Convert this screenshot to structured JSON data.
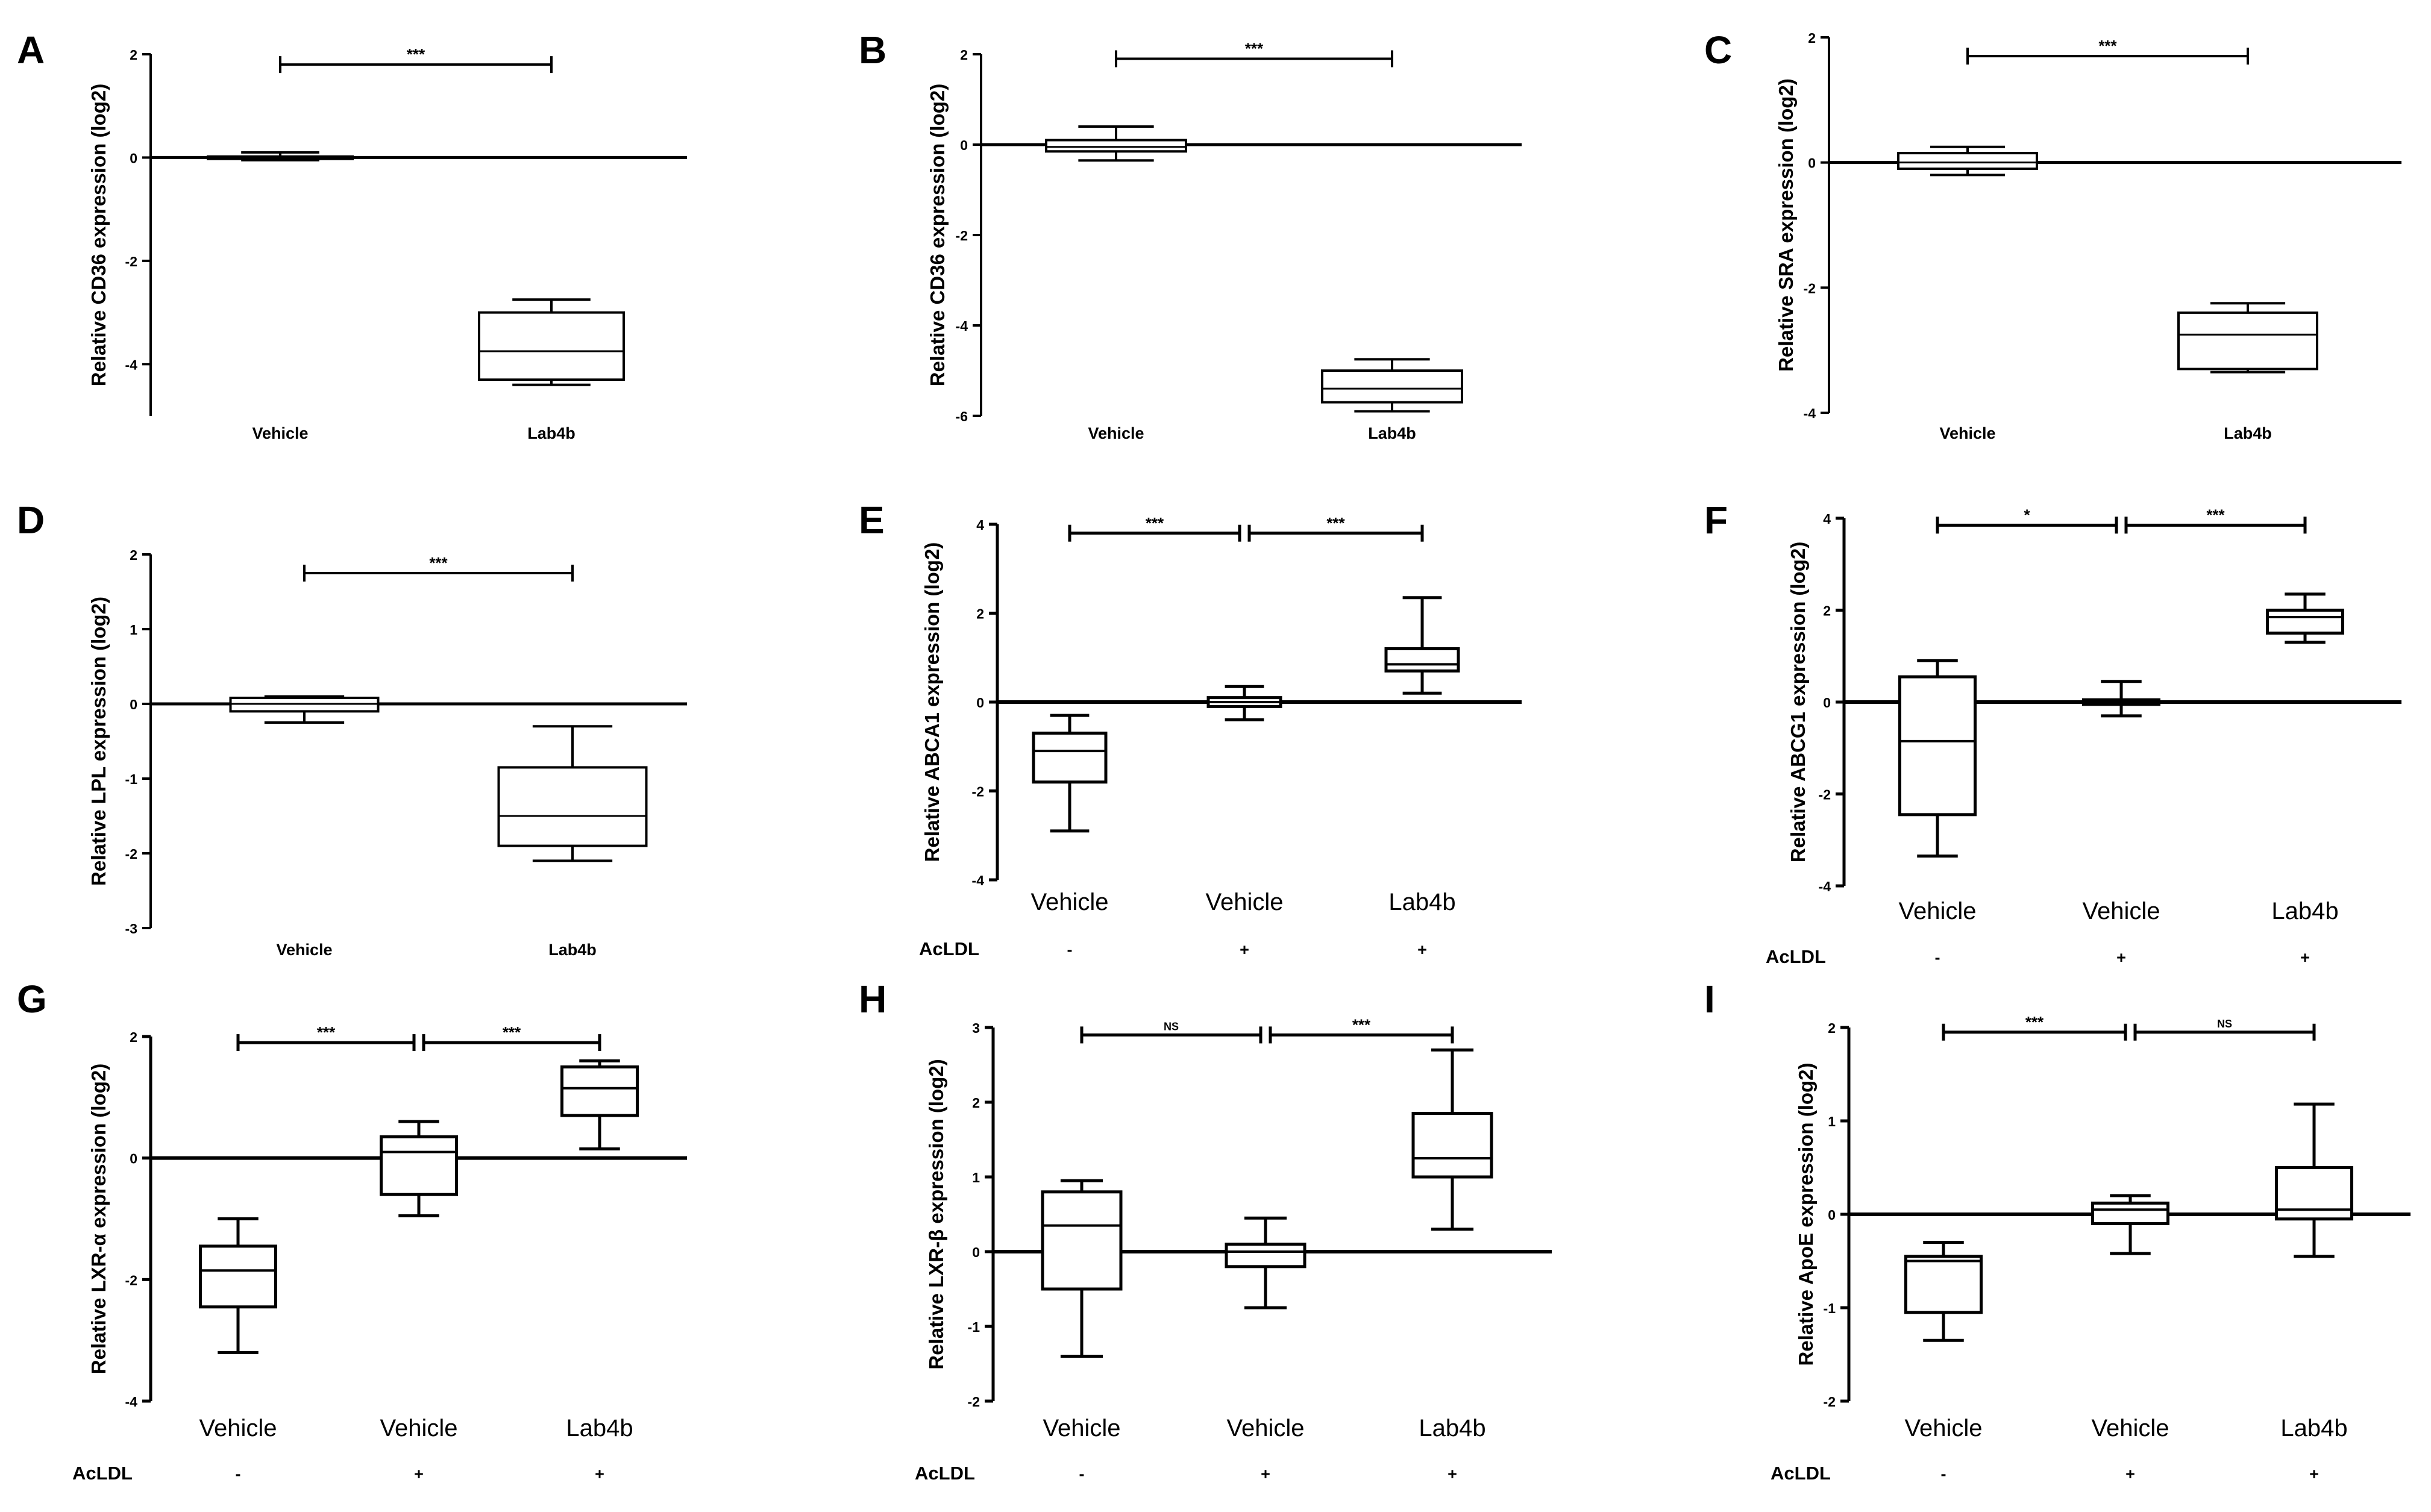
{
  "chart_data": [
    {
      "type": "boxplot",
      "panel": "A",
      "ylabel": "Relative CD36 expression (log2)",
      "ylim": [
        -5,
        2
      ],
      "yticks": [
        -4,
        -2,
        0,
        2
      ],
      "ytick_labels": [
        "-4",
        "-2",
        "0",
        "2"
      ],
      "categories": [
        "Vehicle",
        "Lab4b"
      ],
      "boxes": [
        {
          "min": -0.05,
          "q1": -0.02,
          "median": 0.0,
          "q3": 0.02,
          "max": 0.1
        },
        {
          "min": -4.4,
          "q1": -4.3,
          "median": -3.75,
          "q3": -3.0,
          "max": -2.75
        }
      ],
      "comparisons": [
        {
          "from": 0,
          "to": 1,
          "label": "***",
          "y": 1.8
        }
      ]
    },
    {
      "type": "boxplot",
      "panel": "B",
      "ylabel": "Relative CD36 expression (log2)",
      "ylim": [
        -6,
        2
      ],
      "yticks": [
        -6,
        -4,
        -2,
        0,
        2
      ],
      "ytick_labels": [
        "-6",
        "-4",
        "-2",
        "0",
        "2"
      ],
      "categories": [
        "Vehicle",
        "Lab4b"
      ],
      "boxes": [
        {
          "min": -0.35,
          "q1": -0.15,
          "median": -0.05,
          "q3": 0.1,
          "max": 0.4
        },
        {
          "min": -5.9,
          "q1": -5.7,
          "median": -5.4,
          "q3": -5.0,
          "max": -4.75
        }
      ],
      "comparisons": [
        {
          "from": 0,
          "to": 1,
          "label": "***",
          "y": 1.9
        }
      ]
    },
    {
      "type": "boxplot",
      "panel": "C",
      "ylabel": "Relative SRA expression (log2)",
      "ylim": [
        -4,
        2
      ],
      "yticks": [
        -4,
        -2,
        0,
        2
      ],
      "ytick_labels": [
        "-4",
        "-2",
        "0",
        "2"
      ],
      "categories": [
        "Vehicle",
        "Lab4b"
      ],
      "boxes": [
        {
          "min": -0.2,
          "q1": -0.1,
          "median": 0.0,
          "q3": 0.15,
          "max": 0.25
        },
        {
          "min": -3.35,
          "q1": -3.3,
          "median": -2.75,
          "q3": -2.4,
          "max": -2.25
        }
      ],
      "comparisons": [
        {
          "from": 0,
          "to": 1,
          "label": "***",
          "y": 1.7
        }
      ]
    },
    {
      "type": "boxplot",
      "panel": "D",
      "ylabel": "Relative LPL expression (log2)",
      "ylim": [
        -3,
        2
      ],
      "yticks": [
        -3,
        -2,
        -1,
        0,
        1,
        2
      ],
      "ytick_labels": [
        "-3",
        "-2",
        "-1",
        "0",
        "1",
        "2"
      ],
      "categories": [
        "Vehicle",
        "Lab4b"
      ],
      "boxes": [
        {
          "min": -0.25,
          "q1": -0.1,
          "median": 0.0,
          "q3": 0.08,
          "max": 0.1
        },
        {
          "min": -2.1,
          "q1": -1.9,
          "median": -1.5,
          "q3": -0.85,
          "max": -0.3
        }
      ],
      "comparisons": [
        {
          "from": 0,
          "to": 1,
          "label": "***",
          "y": 1.75
        }
      ]
    },
    {
      "type": "boxplot",
      "panel": "E",
      "ylabel": "Relative  ABCA1 expression (log2)",
      "ylim": [
        -4,
        4
      ],
      "yticks": [
        -4,
        -2,
        0,
        2,
        4
      ],
      "ytick_labels": [
        "-4",
        "-2",
        "0",
        "2",
        "4"
      ],
      "categories": [
        "Vehicle",
        "Vehicle",
        "Lab4b"
      ],
      "treatment_label": "AcLDL",
      "treatment": [
        "-",
        "+",
        "+"
      ],
      "boxes": [
        {
          "min": -2.9,
          "q1": -1.8,
          "median": -1.1,
          "q3": -0.7,
          "max": -0.3
        },
        {
          "min": -0.4,
          "q1": -0.1,
          "median": 0.0,
          "q3": 0.1,
          "max": 0.35
        },
        {
          "min": 0.2,
          "q1": 0.7,
          "median": 0.85,
          "q3": 1.2,
          "max": 2.35
        }
      ],
      "comparisons": [
        {
          "from": 0,
          "to": 1,
          "label": "***",
          "y": 3.8
        },
        {
          "from": 1,
          "to": 2,
          "label": "***",
          "y": 3.8
        }
      ]
    },
    {
      "type": "boxplot",
      "panel": "F",
      "ylabel": "Relative ABCG1 expression (log2)",
      "ylim": [
        -4,
        4
      ],
      "yticks": [
        -4,
        -2,
        0,
        2,
        4
      ],
      "ytick_labels": [
        "-4",
        "-2",
        "0",
        "2",
        "4"
      ],
      "categories": [
        "Vehicle",
        "Vehicle",
        "Lab4b"
      ],
      "treatment_label": "AcLDL",
      "treatment": [
        "-",
        "+",
        "+"
      ],
      "boxes": [
        {
          "min": -3.35,
          "q1": -2.45,
          "median": -0.85,
          "q3": 0.55,
          "max": 0.9
        },
        {
          "min": -0.3,
          "q1": -0.05,
          "median": 0.0,
          "q3": 0.05,
          "max": 0.45
        },
        {
          "min": 1.3,
          "q1": 1.5,
          "median": 1.85,
          "q3": 2.0,
          "max": 2.35
        }
      ],
      "comparisons": [
        {
          "from": 0,
          "to": 1,
          "label": "*",
          "y": 3.85
        },
        {
          "from": 1,
          "to": 2,
          "label": "***",
          "y": 3.85
        }
      ]
    },
    {
      "type": "boxplot",
      "panel": "G",
      "ylabel": "Relative LXR-α expression (log2)",
      "ylim": [
        -4,
        2
      ],
      "yticks": [
        -4,
        -2,
        0,
        2
      ],
      "ytick_labels": [
        "-4",
        "-2",
        "0",
        "2"
      ],
      "categories": [
        "Vehicle",
        "Vehicle",
        "Lab4b"
      ],
      "treatment_label": "AcLDL",
      "treatment": [
        "-",
        "+",
        "+"
      ],
      "boxes": [
        {
          "min": -3.2,
          "q1": -2.45,
          "median": -1.85,
          "q3": -1.45,
          "max": -1.0
        },
        {
          "min": -0.95,
          "q1": -0.6,
          "median": 0.1,
          "q3": 0.35,
          "max": 0.6
        },
        {
          "min": 0.15,
          "q1": 0.7,
          "median": 1.15,
          "q3": 1.5,
          "max": 1.6
        }
      ],
      "comparisons": [
        {
          "from": 0,
          "to": 1,
          "label": "***",
          "y": 1.9
        },
        {
          "from": 1,
          "to": 2,
          "label": "***",
          "y": 1.9
        }
      ]
    },
    {
      "type": "boxplot",
      "panel": "H",
      "ylabel": "Relative LXR-β expression (log2)",
      "ylim": [
        -2,
        3
      ],
      "yticks": [
        -2,
        -1,
        0,
        1,
        2,
        3
      ],
      "ytick_labels": [
        "-2",
        "-1",
        "0",
        "1",
        "2",
        "3"
      ],
      "categories": [
        "Vehicle",
        "Vehicle",
        "Lab4b"
      ],
      "treatment_label": "AcLDL",
      "treatment": [
        "-",
        "+",
        "+"
      ],
      "boxes": [
        {
          "min": -1.4,
          "q1": -0.5,
          "median": 0.35,
          "q3": 0.8,
          "max": 0.95
        },
        {
          "min": -0.75,
          "q1": -0.2,
          "median": 0.0,
          "q3": 0.1,
          "max": 0.45
        },
        {
          "min": 0.3,
          "q1": 1.0,
          "median": 1.25,
          "q3": 1.85,
          "max": 2.7
        }
      ],
      "comparisons": [
        {
          "from": 0,
          "to": 1,
          "label": "NS",
          "y": 2.9
        },
        {
          "from": 1,
          "to": 2,
          "label": "***",
          "y": 2.9
        }
      ]
    },
    {
      "type": "boxplot",
      "panel": "I",
      "ylabel": "Relative ApoE expression (log2)",
      "ylim": [
        -2,
        2
      ],
      "yticks": [
        -2,
        -1,
        0,
        1,
        2
      ],
      "ytick_labels": [
        "-2",
        "-1",
        "0",
        "1",
        "2"
      ],
      "categories": [
        "Vehicle",
        "Vehicle",
        "Lab4b"
      ],
      "treatment_label": "AcLDL",
      "treatment": [
        "-",
        "+",
        "+"
      ],
      "boxes": [
        {
          "min": -1.35,
          "q1": -1.05,
          "median": -0.5,
          "q3": -0.45,
          "max": -0.3
        },
        {
          "min": -0.42,
          "q1": -0.1,
          "median": 0.05,
          "q3": 0.12,
          "max": 0.2
        },
        {
          "min": -0.45,
          "q1": -0.05,
          "median": 0.05,
          "q3": 0.5,
          "max": 1.18
        }
      ],
      "comparisons": [
        {
          "from": 0,
          "to": 1,
          "label": "***",
          "y": 1.95
        },
        {
          "from": 1,
          "to": 2,
          "label": "NS",
          "y": 1.95
        }
      ]
    }
  ]
}
